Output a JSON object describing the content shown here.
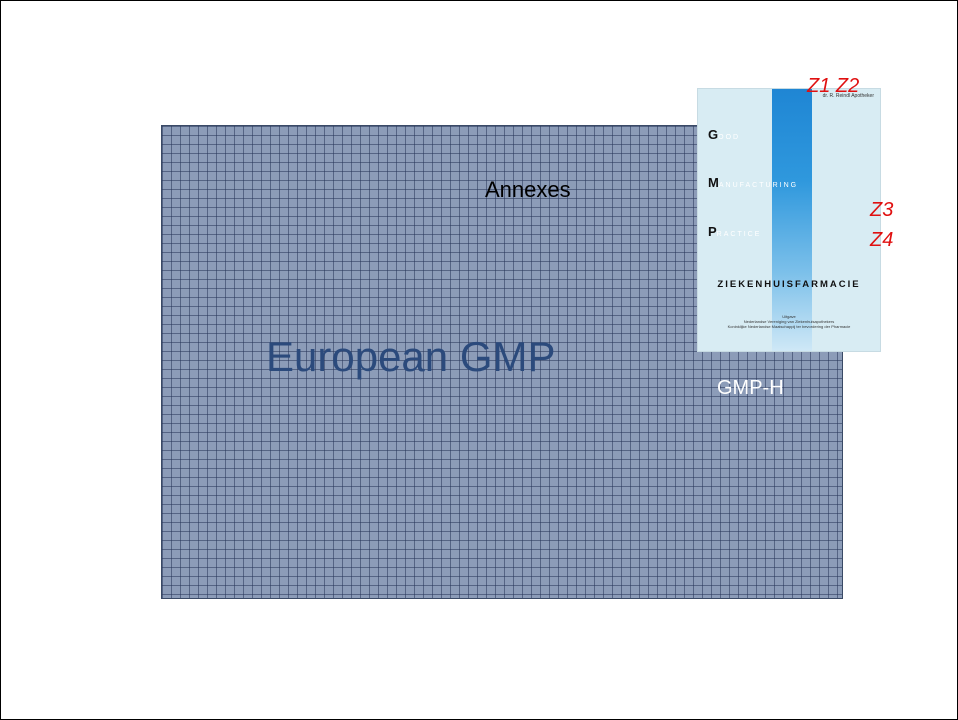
{
  "slide": {
    "annexes_label": "Annexes",
    "european_gmp_label": "European GMP",
    "gmp_h_label": "GMP-H"
  },
  "cover": {
    "author": "dr. R. Reindl Apotheker",
    "lines": [
      {
        "initial": "G",
        "rest": "OOD"
      },
      {
        "initial": "M",
        "rest": "ANUFACTURING"
      },
      {
        "initial": "P",
        "rest": "RACTICE"
      }
    ],
    "subtitle": "ZIEKENHUISFARMACIE",
    "publisher_line1": "Uitgave",
    "publisher_line2": "Nederlandse Vereniging van Ziekenhuisapothekers",
    "publisher_line3": "Koninklijke Nederlandse Maatschappij ter bevordering der Pharmacie"
  },
  "zones": {
    "z1_z2": "Z1 Z2",
    "z3": "Z3",
    "z4": "Z4"
  },
  "colors": {
    "grid_fill": "#8c9cb8",
    "european_text": "#2b4a7c",
    "zone_text": "#e01010"
  }
}
